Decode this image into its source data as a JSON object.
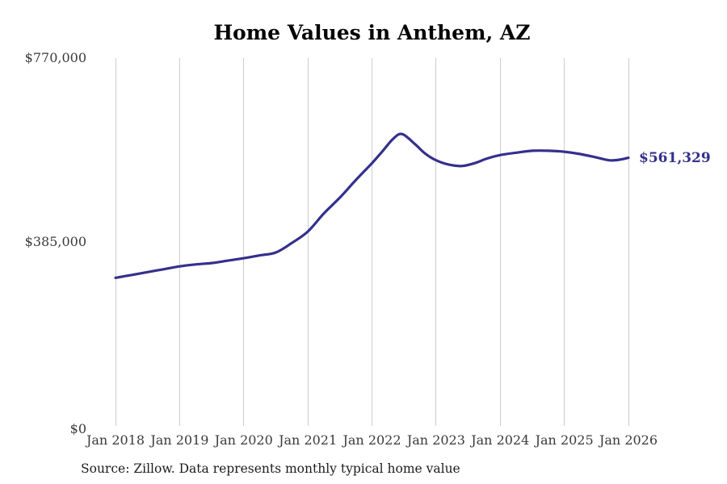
{
  "chart": {
    "title": "Home Values in Anthem, AZ",
    "source_note": "Source: Zillow. Data represents monthly typical home value",
    "end_label": "$561,329",
    "colors": {
      "line": "#34308d",
      "grid": "#cccccc",
      "title": "#050505",
      "tick_label": "#3a3a3a",
      "end_label": "#34308d",
      "background": "#ffffff"
    }
  },
  "chart_data": {
    "type": "line",
    "title": "Home Values in Anthem, AZ",
    "xlabel": "",
    "ylabel": "",
    "x_range": [
      2018,
      2026
    ],
    "y_range": [
      0,
      770000
    ],
    "grid": "vertical-only",
    "legend": "none",
    "x_ticks": [
      {
        "label": "Jan 2018",
        "t": 2018
      },
      {
        "label": "Jan 2019",
        "t": 2019
      },
      {
        "label": "Jan 2020",
        "t": 2020
      },
      {
        "label": "Jan 2021",
        "t": 2021
      },
      {
        "label": "Jan 2022",
        "t": 2022
      },
      {
        "label": "Jan 2023",
        "t": 2023
      },
      {
        "label": "Jan 2024",
        "t": 2024
      },
      {
        "label": "Jan 2025",
        "t": 2025
      },
      {
        "label": "Jan 2026",
        "t": 2026
      }
    ],
    "y_ticks": [
      {
        "label": "$770,000",
        "value": 770000
      },
      {
        "label": "$385,000",
        "value": 385000
      },
      {
        "label": "$0",
        "value": 0
      }
    ],
    "series": [
      {
        "name": "Typical home value",
        "points": [
          [
            2018.0,
            310000
          ],
          [
            2018.25,
            316000
          ],
          [
            2018.5,
            322000
          ],
          [
            2018.75,
            328000
          ],
          [
            2019.0,
            334000
          ],
          [
            2019.25,
            338000
          ],
          [
            2019.5,
            341000
          ],
          [
            2019.75,
            346000
          ],
          [
            2020.0,
            351000
          ],
          [
            2020.25,
            357000
          ],
          [
            2020.5,
            363000
          ],
          [
            2020.75,
            383000
          ],
          [
            2021.0,
            407000
          ],
          [
            2021.25,
            445000
          ],
          [
            2021.5,
            478000
          ],
          [
            2021.75,
            515000
          ],
          [
            2022.0,
            550000
          ],
          [
            2022.17,
            576000
          ],
          [
            2022.33,
            601000
          ],
          [
            2022.47,
            611000
          ],
          [
            2022.67,
            590000
          ],
          [
            2022.83,
            570000
          ],
          [
            2023.0,
            556000
          ],
          [
            2023.2,
            547000
          ],
          [
            2023.4,
            544000
          ],
          [
            2023.6,
            550000
          ],
          [
            2023.8,
            560000
          ],
          [
            2024.0,
            567000
          ],
          [
            2024.25,
            572000
          ],
          [
            2024.5,
            576000
          ],
          [
            2024.75,
            576000
          ],
          [
            2025.0,
            574000
          ],
          [
            2025.25,
            569000
          ],
          [
            2025.5,
            562000
          ],
          [
            2025.7,
            556000
          ],
          [
            2025.85,
            557000
          ],
          [
            2026.0,
            561329
          ]
        ]
      }
    ],
    "latest_value": 561329,
    "latest_value_label": "$561,329"
  }
}
